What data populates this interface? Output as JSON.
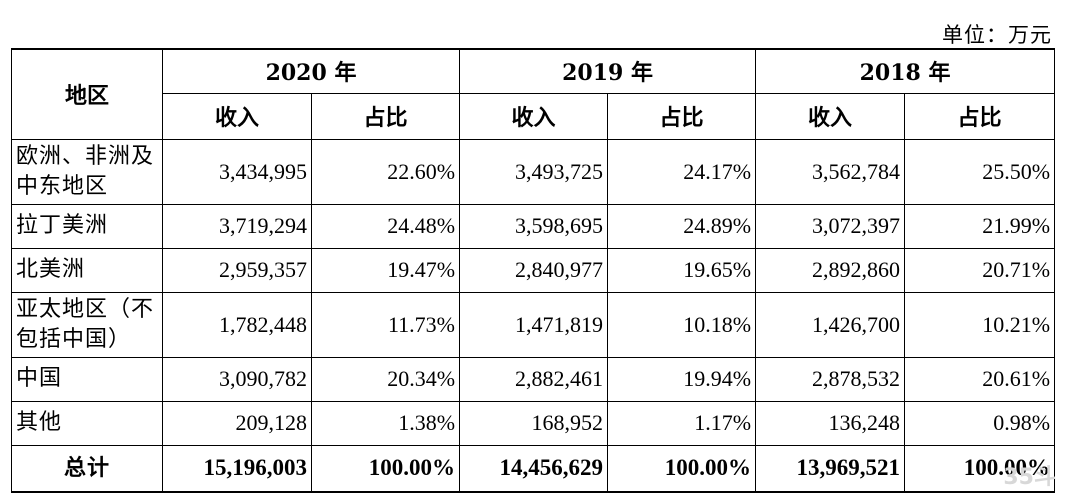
{
  "unit": "单位：万元",
  "table": {
    "region_header": "地区",
    "years": [
      "2020 年",
      "2019 年",
      "2018 年"
    ],
    "sub_headers": {
      "revenue": "收入",
      "share": "占比"
    },
    "rows": [
      {
        "region": "欧洲、非洲及中东地区",
        "values": [
          "3,434,995",
          "22.60%",
          "3,493,725",
          "24.17%",
          "3,562,784",
          "25.50%"
        ]
      },
      {
        "region": "拉丁美洲",
        "values": [
          "3,719,294",
          "24.48%",
          "3,598,695",
          "24.89%",
          "3,072,397",
          "21.99%"
        ]
      },
      {
        "region": "北美洲",
        "values": [
          "2,959,357",
          "19.47%",
          "2,840,977",
          "19.65%",
          "2,892,860",
          "20.71%"
        ]
      },
      {
        "region": "亚太地区（不包括中国）",
        "values": [
          "1,782,448",
          "11.73%",
          "1,471,819",
          "10.18%",
          "1,426,700",
          "10.21%"
        ]
      },
      {
        "region": "中国",
        "values": [
          "3,090,782",
          "20.34%",
          "2,882,461",
          "19.94%",
          "2,878,532",
          "20.61%"
        ]
      },
      {
        "region": "其他",
        "values": [
          "209,128",
          "1.38%",
          "168,952",
          "1.17%",
          "136,248",
          "0.98%"
        ]
      }
    ],
    "total": {
      "label": "总计",
      "values": [
        "15,196,003",
        "100.00%",
        "14,456,629",
        "100.00%",
        "13,969,521",
        "100.00%"
      ]
    }
  },
  "watermark": "35斗"
}
